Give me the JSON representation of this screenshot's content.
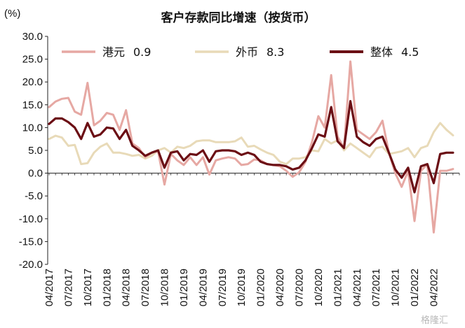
{
  "chart_data": {
    "type": "line",
    "title": "客户存款同比增速（按货币）",
    "unit_label": "(%)",
    "ylim": [
      -20,
      30
    ],
    "yticks": [
      "30.0",
      "25.0",
      "20.0",
      "15.0",
      "10.0",
      "5.0",
      "0.0",
      "-5.0",
      "-10.0",
      "-15.0",
      "-20.0"
    ],
    "ytick_values": [
      30,
      25,
      20,
      15,
      10,
      5,
      0,
      -5,
      -10,
      -15,
      -20
    ],
    "x_start": "04/2017",
    "x_end": "08/2022",
    "x_tick_labels": [
      "04/2017",
      "07/2017",
      "10/2017",
      "01/2018",
      "04/2018",
      "07/2018",
      "10/2018",
      "01/2019",
      "04/2019",
      "07/2019",
      "10/2019",
      "01/2020",
      "04/2020",
      "07/2020",
      "10/2020",
      "01/2021",
      "04/2021",
      "07/2021",
      "10/2021",
      "01/2022",
      "04/2022"
    ],
    "legend_position": "top",
    "series": [
      {
        "name": "港元",
        "latest_label": "0.9",
        "color": "#E6A8A3",
        "values": [
          14.5,
          15.7,
          16.3,
          16.5,
          13.5,
          12.8,
          19.8,
          10.5,
          11.5,
          13.2,
          12.8,
          9.5,
          13.8,
          6.5,
          5.5,
          3.5,
          4.5,
          4.8,
          -2.5,
          4.2,
          2.8,
          1.8,
          3.5,
          1.8,
          3.5,
          -0.3,
          2.8,
          3.2,
          3.5,
          3.2,
          1.8,
          2.0,
          3.0,
          2.8,
          2.0,
          1.8,
          1.5,
          0.5,
          -0.8,
          0.2,
          2.5,
          6.8,
          12.5,
          10.0,
          21.5,
          8.0,
          5.5,
          24.5,
          9.5,
          8.5,
          7.5,
          9.0,
          11.5,
          4.5,
          0.0,
          -3.0,
          0.5,
          -10.5,
          0.5,
          2.0,
          -13.0,
          0.5,
          0.5,
          0.9
        ]
      },
      {
        "name": "外币",
        "latest_label": "8.3",
        "color": "#E8DAB8",
        "values": [
          7.5,
          8.2,
          7.8,
          6.0,
          6.2,
          2.0,
          2.2,
          4.5,
          5.8,
          6.5,
          4.5,
          4.5,
          4.2,
          3.8,
          4.0,
          3.2,
          3.8,
          5.0,
          5.5,
          4.5,
          5.8,
          5.5,
          6.0,
          7.0,
          7.2,
          7.2,
          6.8,
          6.8,
          6.8,
          7.0,
          7.8,
          5.8,
          6.0,
          5.2,
          4.5,
          4.0,
          2.5,
          2.0,
          3.2,
          3.2,
          3.5,
          5.0,
          4.8,
          7.5,
          6.5,
          7.2,
          5.0,
          6.5,
          5.5,
          4.5,
          3.5,
          5.5,
          5.8,
          4.2,
          4.5,
          4.8,
          5.5,
          3.5,
          5.5,
          6.0,
          9.0,
          11.0,
          9.5,
          8.3
        ]
      },
      {
        "name": "整体",
        "latest_label": "4.5",
        "color": "#6B0E14",
        "values": [
          10.8,
          12.0,
          12.0,
          11.2,
          10.0,
          7.5,
          11.0,
          8.0,
          8.5,
          10.0,
          9.8,
          7.5,
          9.5,
          6.0,
          5.0,
          3.8,
          4.5,
          5.0,
          1.2,
          4.5,
          4.8,
          2.8,
          4.2,
          4.0,
          5.0,
          2.5,
          4.8,
          5.0,
          5.0,
          4.8,
          4.0,
          4.5,
          4.0,
          2.5,
          2.0,
          1.8,
          1.8,
          1.5,
          0.8,
          1.2,
          2.8,
          5.5,
          8.5,
          8.0,
          14.5,
          7.0,
          5.5,
          15.8,
          8.0,
          6.8,
          6.0,
          7.5,
          8.0,
          4.5,
          0.8,
          -1.0,
          1.2,
          -4.2,
          1.5,
          2.0,
          -2.2,
          4.2,
          4.5,
          4.5
        ]
      }
    ]
  },
  "watermark": "格隆汇"
}
